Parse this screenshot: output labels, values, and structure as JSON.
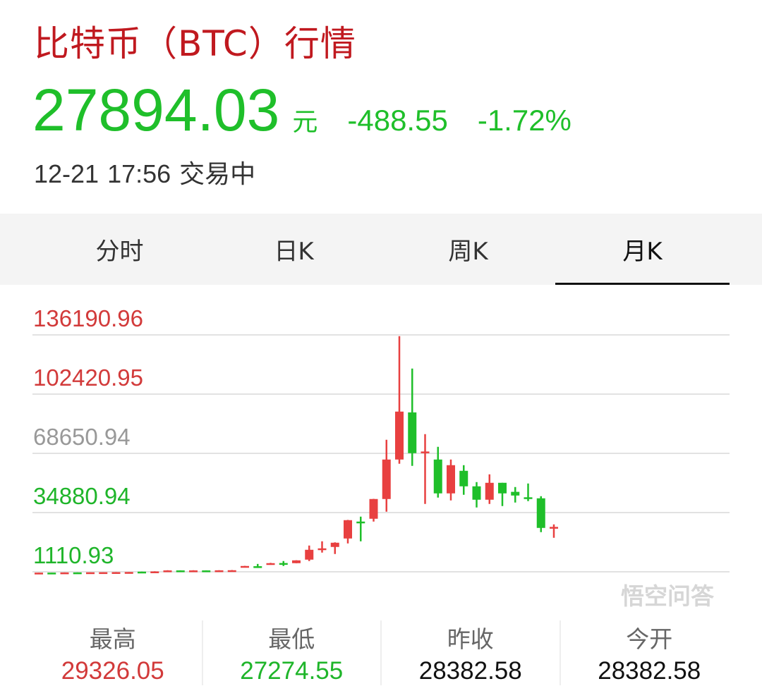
{
  "header": {
    "title": "比特币（BTC）行情",
    "price": "27894.03",
    "unit": "元",
    "change": "-488.55",
    "change_pct": "-1.72%",
    "date": "12-21",
    "time": "17:56",
    "status": "交易中"
  },
  "tabs": [
    {
      "label": "分时",
      "active": false
    },
    {
      "label": "日K",
      "active": false
    },
    {
      "label": "周K",
      "active": false
    },
    {
      "label": "月K",
      "active": true
    }
  ],
  "stats": [
    {
      "label": "最高",
      "value": "29326.05",
      "color": "#d23a3a"
    },
    {
      "label": "最低",
      "value": "27274.55",
      "color": "#1fb52a"
    },
    {
      "label": "昨收",
      "value": "28382.58",
      "color": "#111111"
    },
    {
      "label": "今开",
      "value": "28382.58",
      "color": "#111111"
    }
  ],
  "watermark": "悟空问答",
  "colors": {
    "up": "#e84040",
    "down": "#1fbf2a",
    "title": "#c0191f",
    "grid": "#e2e2e2"
  },
  "chart_data": {
    "type": "candlestick",
    "period": "月K",
    "y_ticks": [
      {
        "value": 136190.96,
        "label": "136190.96",
        "color": "#d23a3a"
      },
      {
        "value": 102420.95,
        "label": "102420.95",
        "color": "#d23a3a"
      },
      {
        "value": 68650.94,
        "label": "68650.94",
        "color": "#999999"
      },
      {
        "value": 34880.94,
        "label": "34880.94",
        "color": "#1fb52a"
      },
      {
        "value": 1110.93,
        "label": "1110.93",
        "color": "#1fb52a"
      }
    ],
    "ylim": [
      1110.93,
      136190.96
    ],
    "grid": true,
    "candles": [
      [
        600,
        620,
        560,
        640
      ],
      [
        640,
        620,
        600,
        660
      ],
      [
        700,
        740,
        690,
        760
      ],
      [
        760,
        740,
        720,
        780
      ],
      [
        800,
        820,
        780,
        840
      ],
      [
        850,
        870,
        820,
        900
      ],
      [
        900,
        920,
        880,
        960
      ],
      [
        960,
        980,
        940,
        1000
      ],
      [
        1200,
        1180,
        1150,
        1250
      ],
      [
        1300,
        1320,
        1280,
        1400
      ],
      [
        1400,
        1900,
        1380,
        2000
      ],
      [
        1900,
        1800,
        1700,
        1950
      ],
      [
        1800,
        1900,
        1750,
        2000
      ],
      [
        1900,
        1850,
        1800,
        1950
      ],
      [
        1850,
        1950,
        1800,
        2000
      ],
      [
        1950,
        2000,
        1900,
        2100
      ],
      [
        3618,
        4422,
        3600,
        4500
      ],
      [
        4300,
        4100,
        3300,
        5600
      ],
      [
        5226,
        6030,
        5100,
        6200
      ],
      [
        6100,
        6000,
        4422,
        7236
      ],
      [
        6030,
        7638,
        6000,
        7700
      ],
      [
        8040,
        13668,
        7236,
        16080
      ],
      [
        14000,
        14472,
        12060,
        18492
      ],
      [
        15276,
        17688,
        11256,
        17900
      ],
      [
        20100,
        30552,
        17286,
        30700
      ],
      [
        29748,
        29300,
        18492,
        32562
      ],
      [
        31356,
        42612,
        29748,
        42700
      ],
      [
        42612,
        65124,
        35376,
        76380
      ],
      [
        65124,
        92460,
        62712,
        135474
      ],
      [
        92000,
        68742,
        61506,
        116982
      ],
      [
        69300,
        69700,
        39798,
        79596
      ],
      [
        65124,
        45828,
        43416,
        72360
      ],
      [
        45828,
        61908,
        41808,
        65124
      ],
      [
        58692,
        49848,
        45024,
        61908
      ],
      [
        49848,
        42210,
        37788,
        52260
      ],
      [
        42210,
        51858,
        39798,
        56682
      ],
      [
        51858,
        45828,
        38592,
        51858
      ],
      [
        46700,
        44600,
        40602,
        49446
      ],
      [
        43600,
        43400,
        41406,
        51456
      ],
      [
        43014,
        26130,
        23718,
        44220
      ],
      [
        26533,
        26700,
        20502,
        28140
      ]
    ],
    "candle_format": [
      "open",
      "close",
      "low",
      "high"
    ]
  }
}
